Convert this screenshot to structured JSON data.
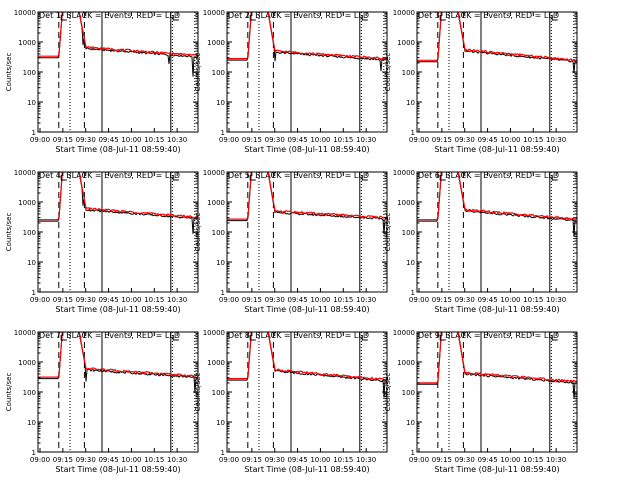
{
  "figure": {
    "background": "#ffffff",
    "axis_color": "#000000",
    "events_color": "#000000",
    "lld_color": "#ff0000"
  },
  "chart_data": [
    {
      "type": "line",
      "title": "Det 1: BLACK = Events, RED = LLD",
      "xlabel": "Start Time (08-Jul-11 08:59:40)",
      "ylabel": "Counts/sec",
      "yscale": "log",
      "ylim": [
        1,
        10000
      ],
      "xlim": [
        0,
        100
      ],
      "tick_labels": [
        "09:00",
        "09:15",
        "09:30",
        "09:45",
        "10:00",
        "10:15",
        "10:30"
      ],
      "y_tick_labels": [
        "1",
        "10",
        "100",
        "1000",
        "10000"
      ],
      "base": 300,
      "flare_peak": 10000,
      "post": 600,
      "end_level": 320,
      "spikes": [
        [
          28,
          0.4
        ],
        [
          82,
          0.5
        ],
        [
          97,
          0.2
        ]
      ],
      "dashed_lines": [
        13,
        29
      ],
      "dotted_lines": [
        20,
        84,
        98
      ],
      "solid_lines": [
        40,
        83
      ]
    },
    {
      "type": "line",
      "title": "Det 2: BLACK = Events, RED = LLD",
      "xlabel": "Start Time (08-Jul-11 08:59:40)",
      "ylabel": "Counts/sec",
      "yscale": "log",
      "ylim": [
        1,
        10000
      ],
      "xlim": [
        0,
        100
      ],
      "tick_labels": [
        "09:00",
        "09:15",
        "09:30",
        "09:45",
        "10:00",
        "10:15",
        "10:30"
      ],
      "y_tick_labels": [
        "1",
        "10",
        "100",
        "1000",
        "10000"
      ],
      "base": 250,
      "flare_peak": 10000,
      "post": 450,
      "end_level": 250,
      "spikes": [
        [
          30,
          0.5
        ],
        [
          96,
          0.4
        ]
      ],
      "dashed_lines": [
        13,
        29
      ],
      "dotted_lines": [
        20,
        84,
        98
      ],
      "solid_lines": [
        40,
        83
      ]
    },
    {
      "type": "line",
      "title": "Det 3: BLACK = Events, RED = LLD",
      "xlabel": "Start Time (08-Jul-11 08:59:40)",
      "ylabel": "Counts/sec",
      "yscale": "log",
      "ylim": [
        1,
        10000
      ],
      "xlim": [
        0,
        100
      ],
      "tick_labels": [
        "09:00",
        "09:15",
        "09:30",
        "09:45",
        "10:00",
        "10:15",
        "10:30"
      ],
      "y_tick_labels": [
        "1",
        "10",
        "100",
        "1000",
        "10000"
      ],
      "base": 220,
      "flare_peak": 10000,
      "post": 500,
      "end_level": 220,
      "spikes": [
        [
          98,
          0.4
        ]
      ],
      "dashed_lines": [
        13,
        29
      ],
      "dotted_lines": [
        20,
        84,
        98
      ],
      "solid_lines": [
        40,
        83
      ]
    },
    {
      "type": "line",
      "title": "Det 4: BLACK = Events, RED = LLD",
      "xlabel": "Start Time (08-Jul-11 08:59:40)",
      "ylabel": "Counts/sec",
      "yscale": "log",
      "ylim": [
        1,
        10000
      ],
      "xlim": [
        0,
        100
      ],
      "tick_labels": [
        "09:00",
        "09:15",
        "09:30",
        "09:45",
        "10:00",
        "10:15",
        "10:30"
      ],
      "y_tick_labels": [
        "1",
        "10",
        "100",
        "1000",
        "10000"
      ],
      "base": 230,
      "flare_peak": 10000,
      "post": 550,
      "end_level": 280,
      "spikes": [
        [
          28,
          0.4
        ],
        [
          97,
          0.3
        ]
      ],
      "dashed_lines": [
        13,
        29
      ],
      "dotted_lines": [
        20,
        84,
        98
      ],
      "solid_lines": [
        40,
        83
      ]
    },
    {
      "type": "line",
      "title": "Det 5: BLACK = Events, RED = LLD",
      "xlabel": "Start Time (08-Jul-11 08:59:40)",
      "ylabel": "Counts/sec",
      "yscale": "log",
      "ylim": [
        1,
        10000
      ],
      "xlim": [
        0,
        100
      ],
      "tick_labels": [
        "09:00",
        "09:15",
        "09:30",
        "09:45",
        "10:00",
        "10:15",
        "10:30"
      ],
      "y_tick_labels": [
        "1",
        "10",
        "100",
        "1000",
        "10000"
      ],
      "base": 240,
      "flare_peak": 10000,
      "post": 450,
      "end_level": 270,
      "spikes": [
        [
          98,
          0.3
        ]
      ],
      "dashed_lines": [
        13,
        29
      ],
      "dotted_lines": [
        20,
        84,
        98
      ],
      "solid_lines": [
        40,
        83
      ]
    },
    {
      "type": "line",
      "title": "Det 6: BLACK = Events, RED = LLD",
      "xlabel": "Start Time (08-Jul-11 08:59:40)",
      "ylabel": "Counts/sec",
      "yscale": "log",
      "ylim": [
        1,
        10000
      ],
      "xlim": [
        0,
        100
      ],
      "tick_labels": [
        "09:00",
        "09:15",
        "09:30",
        "09:45",
        "10:00",
        "10:15",
        "10:30"
      ],
      "y_tick_labels": [
        "1",
        "10",
        "100",
        "1000",
        "10000"
      ],
      "base": 230,
      "flare_peak": 10000,
      "post": 500,
      "end_level": 240,
      "spikes": [
        [
          98,
          0.3
        ]
      ],
      "dashed_lines": [
        13,
        29
      ],
      "dotted_lines": [
        20,
        84,
        98
      ],
      "solid_lines": [
        40,
        83
      ]
    },
    {
      "type": "line",
      "title": "Det 7: BLACK = Events, RED = LLD",
      "xlabel": "Start Time (08-Jul-11 08:59:40)",
      "ylabel": "Counts/sec",
      "yscale": "log",
      "ylim": [
        1,
        10000
      ],
      "xlim": [
        0,
        100
      ],
      "tick_labels": [
        "09:00",
        "09:15",
        "09:30",
        "09:45",
        "10:00",
        "10:15",
        "10:30"
      ],
      "y_tick_labels": [
        "1",
        "10",
        "100",
        "1000",
        "10000"
      ],
      "base": 280,
      "flare_peak": 10000,
      "post": 550,
      "end_level": 300,
      "spikes": [
        [
          30,
          0.4
        ],
        [
          98,
          0.3
        ]
      ],
      "dashed_lines": [
        13,
        29
      ],
      "dotted_lines": [
        20,
        84,
        98
      ],
      "solid_lines": [
        40,
        83
      ]
    },
    {
      "type": "line",
      "title": "Det 8: BLACK = Events, RED = LLD",
      "xlabel": "Start Time (08-Jul-11 08:59:40)",
      "ylabel": "Counts/sec",
      "yscale": "log",
      "ylim": [
        1,
        10000
      ],
      "xlim": [
        0,
        100
      ],
      "tick_labels": [
        "09:00",
        "09:15",
        "09:30",
        "09:45",
        "10:00",
        "10:15",
        "10:30"
      ],
      "y_tick_labels": [
        "1",
        "10",
        "100",
        "1000",
        "10000"
      ],
      "base": 250,
      "flare_peak": 10000,
      "post": 500,
      "end_level": 230,
      "spikes": [
        [
          98,
          0.3
        ]
      ],
      "dashed_lines": [
        13,
        29
      ],
      "dotted_lines": [
        20,
        84,
        98
      ],
      "solid_lines": [
        40,
        83
      ]
    },
    {
      "type": "line",
      "title": "Det 9: BLACK = Events, RED = LLD",
      "xlabel": "Start Time (08-Jul-11 08:59:40)",
      "ylabel": "Counts/sec",
      "yscale": "log",
      "ylim": [
        1,
        10000
      ],
      "xlim": [
        0,
        100
      ],
      "tick_labels": [
        "09:00",
        "09:15",
        "09:30",
        "09:45",
        "10:00",
        "10:15",
        "10:30"
      ],
      "y_tick_labels": [
        "1",
        "10",
        "100",
        "1000",
        "10000"
      ],
      "base": 180,
      "flare_peak": 10000,
      "post": 400,
      "end_level": 200,
      "spikes": [
        [
          98,
          0.3
        ]
      ],
      "dashed_lines": [
        13,
        29
      ],
      "dotted_lines": [
        20,
        84,
        98
      ],
      "solid_lines": [
        40,
        83
      ]
    }
  ]
}
